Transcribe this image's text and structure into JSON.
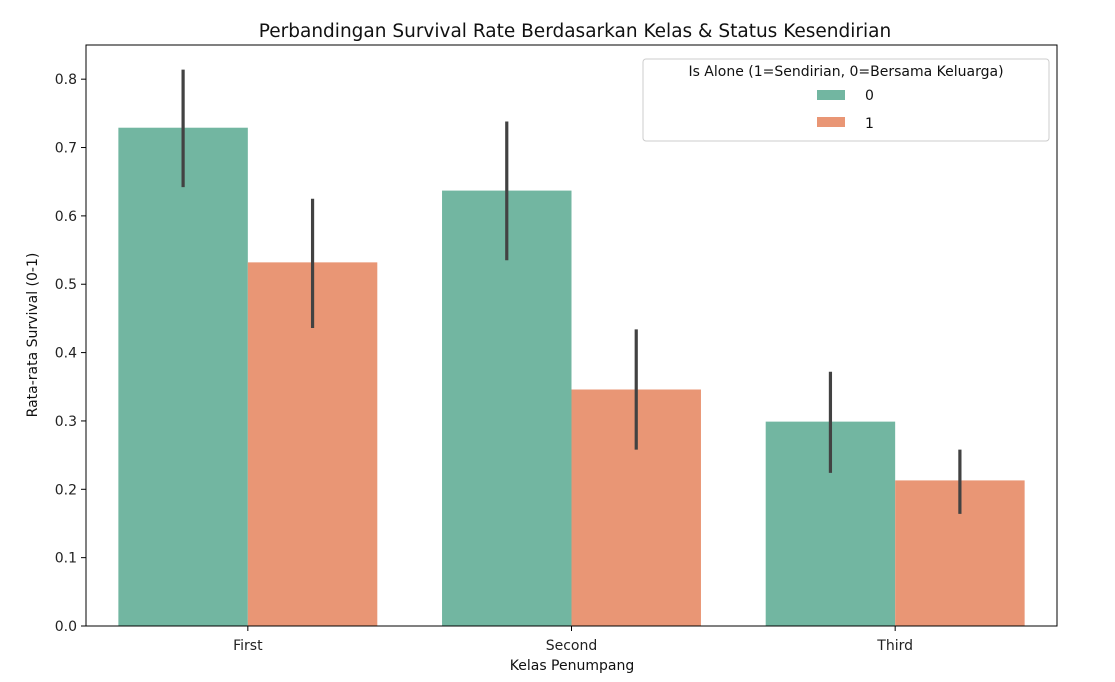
{
  "chart_data": {
    "type": "bar",
    "title": "Perbandingan Survival Rate Berdasarkan Kelas & Status Kesendirian",
    "xlabel": "Kelas Penumpang",
    "ylabel": "Rata-rata Survival (0-1)",
    "categories": [
      "First",
      "Second",
      "Third"
    ],
    "ylim": [
      0,
      0.85
    ],
    "yticks": [
      "0.0",
      "0.1",
      "0.2",
      "0.3",
      "0.4",
      "0.5",
      "0.6",
      "0.7",
      "0.8"
    ],
    "grid": false,
    "legend": {
      "title": "Is Alone (1=Sendirian, 0=Bersama Keluarga)",
      "placement": "top-right"
    },
    "series": [
      {
        "name": "0",
        "color": "#72b6a1",
        "values": [
          0.729,
          0.637,
          0.299
        ],
        "ci_low": [
          0.642,
          0.535,
          0.224
        ],
        "ci_high": [
          0.814,
          0.738,
          0.372
        ]
      },
      {
        "name": "1",
        "color": "#e99675",
        "values": [
          0.532,
          0.346,
          0.213
        ],
        "ci_low": [
          0.436,
          0.258,
          0.164
        ],
        "ci_high": [
          0.625,
          0.434,
          0.258
        ]
      }
    ]
  }
}
